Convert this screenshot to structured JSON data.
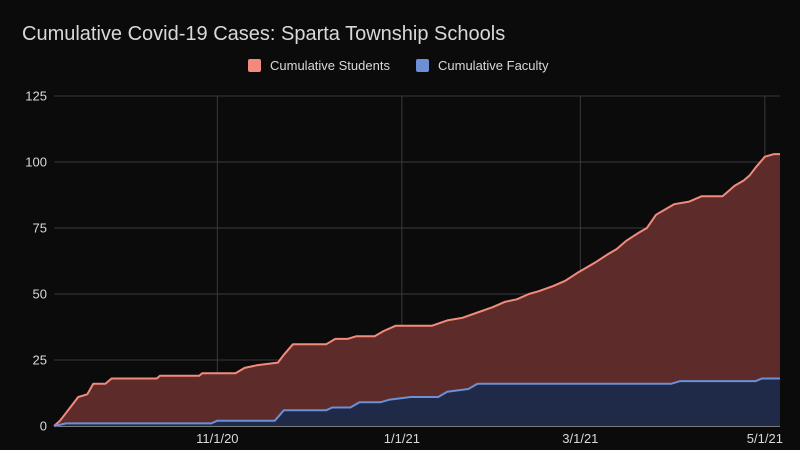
{
  "chart_data": {
    "type": "area",
    "title": "Cumulative Covid-19 Cases: Sparta Township Schools",
    "xlabel": "",
    "ylabel": "",
    "x_ticks": [
      "11/1/20",
      "1/1/21",
      "3/1/21",
      "5/1/21"
    ],
    "y_ticks": [
      "0",
      "25",
      "50",
      "75",
      "100",
      "125"
    ],
    "ylim": [
      0,
      125
    ],
    "xlim": [
      "2020-09-08",
      "2021-05-06"
    ],
    "grid": true,
    "legend_position": "top",
    "series": [
      {
        "name": "Cumulative Students",
        "color": "#f28b7d",
        "fill": "#5e2b2b",
        "points": [
          [
            "2020-09-08",
            0
          ],
          [
            "2020-09-10",
            2
          ],
          [
            "2020-09-12",
            5
          ],
          [
            "2020-09-14",
            8
          ],
          [
            "2020-09-16",
            11
          ],
          [
            "2020-09-19",
            12
          ],
          [
            "2020-09-21",
            16
          ],
          [
            "2020-09-25",
            16
          ],
          [
            "2020-09-27",
            18
          ],
          [
            "2020-10-12",
            18
          ],
          [
            "2020-10-13",
            19
          ],
          [
            "2020-10-26",
            19
          ],
          [
            "2020-10-27",
            20
          ],
          [
            "2020-11-07",
            20
          ],
          [
            "2020-11-10",
            22
          ],
          [
            "2020-11-14",
            23
          ],
          [
            "2020-11-21",
            24
          ],
          [
            "2020-11-23",
            27
          ],
          [
            "2020-11-26",
            31
          ],
          [
            "2020-12-07",
            31
          ],
          [
            "2020-12-10",
            33
          ],
          [
            "2020-12-14",
            33
          ],
          [
            "2020-12-17",
            34
          ],
          [
            "2020-12-23",
            34
          ],
          [
            "2020-12-26",
            36
          ],
          [
            "2020-12-30",
            38
          ],
          [
            "2021-01-11",
            38
          ],
          [
            "2021-01-16",
            40
          ],
          [
            "2021-01-21",
            41
          ],
          [
            "2021-01-26",
            43
          ],
          [
            "2021-01-31",
            45
          ],
          [
            "2021-02-04",
            47
          ],
          [
            "2021-02-08",
            48
          ],
          [
            "2021-02-12",
            50
          ],
          [
            "2021-02-15",
            51
          ],
          [
            "2021-02-20",
            53
          ],
          [
            "2021-02-24",
            55
          ],
          [
            "2021-02-28",
            58
          ],
          [
            "2021-03-03",
            60
          ],
          [
            "2021-03-06",
            62
          ],
          [
            "2021-03-10",
            65
          ],
          [
            "2021-03-13",
            67
          ],
          [
            "2021-03-16",
            70
          ],
          [
            "2021-03-20",
            73
          ],
          [
            "2021-03-23",
            75
          ],
          [
            "2021-03-26",
            80
          ],
          [
            "2021-03-29",
            82
          ],
          [
            "2021-04-01",
            84
          ],
          [
            "2021-04-06",
            85
          ],
          [
            "2021-04-10",
            87
          ],
          [
            "2021-04-17",
            87
          ],
          [
            "2021-04-19",
            89
          ],
          [
            "2021-04-21",
            91
          ],
          [
            "2021-04-24",
            93
          ],
          [
            "2021-04-26",
            95
          ],
          [
            "2021-04-28",
            98
          ],
          [
            "2021-05-01",
            102
          ],
          [
            "2021-05-04",
            103
          ],
          [
            "2021-05-06",
            103
          ]
        ]
      },
      {
        "name": "Cumulative Faculty",
        "color": "#6d8fd6",
        "fill": "#1e2a48",
        "points": [
          [
            "2020-09-08",
            0
          ],
          [
            "2020-09-12",
            1
          ],
          [
            "2020-10-30",
            1
          ],
          [
            "2020-11-01",
            2
          ],
          [
            "2020-11-20",
            2
          ],
          [
            "2020-11-23",
            6
          ],
          [
            "2020-12-07",
            6
          ],
          [
            "2020-12-09",
            7
          ],
          [
            "2020-12-15",
            7
          ],
          [
            "2020-12-18",
            9
          ],
          [
            "2020-12-25",
            9
          ],
          [
            "2020-12-28",
            10
          ],
          [
            "2021-01-04",
            11
          ],
          [
            "2021-01-13",
            11
          ],
          [
            "2021-01-16",
            13
          ],
          [
            "2021-01-23",
            14
          ],
          [
            "2021-01-26",
            16
          ],
          [
            "2021-03-31",
            16
          ],
          [
            "2021-04-03",
            17
          ],
          [
            "2021-04-28",
            17
          ],
          [
            "2021-04-30",
            18
          ],
          [
            "2021-05-06",
            18
          ]
        ]
      }
    ]
  }
}
